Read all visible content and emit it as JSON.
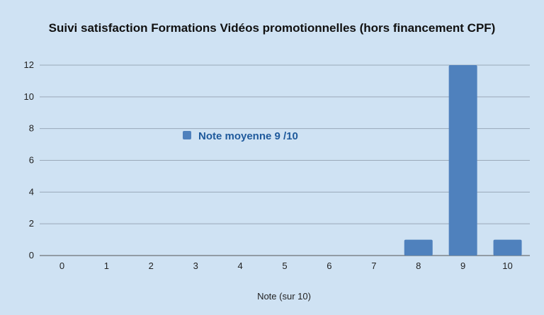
{
  "chart_data": {
    "type": "bar",
    "title": "Suivi satisfaction Formations Vidéos promotionnelles (hors financement CPF)",
    "xlabel": "Note (sur 10)",
    "ylabel": "",
    "categories": [
      "0",
      "1",
      "2",
      "3",
      "4",
      "5",
      "6",
      "7",
      "8",
      "9",
      "10"
    ],
    "series": [
      {
        "name": "Note moyenne 9 /10",
        "values": [
          0,
          0,
          0,
          0,
          0,
          0,
          0,
          0,
          1,
          12,
          1
        ]
      }
    ],
    "ylim": [
      0,
      12
    ],
    "yticks": [
      "0",
      "2",
      "4",
      "6",
      "8",
      "10",
      "12"
    ],
    "grid": true,
    "legend_position": "inside-left",
    "bar_color": "#4f81bd",
    "background_color": "#cfe2f3",
    "grid_color": "#9aa9b8"
  }
}
